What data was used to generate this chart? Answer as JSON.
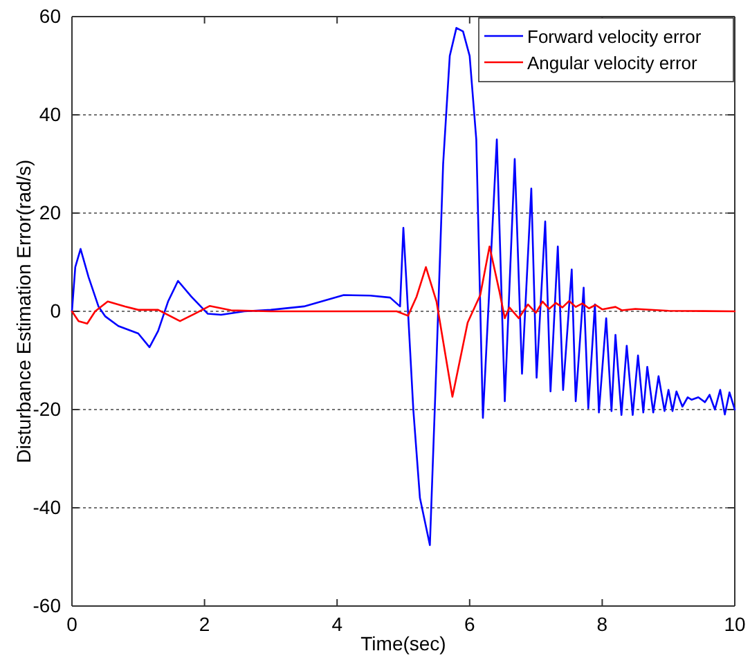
{
  "chart_data": {
    "type": "line",
    "xlabel": "Time(sec)",
    "ylabel": "Disturbance Estimation Error(rad/s)",
    "xlim": [
      0,
      10
    ],
    "ylim": [
      -60,
      60
    ],
    "xticks": [
      0,
      2,
      4,
      6,
      8,
      10
    ],
    "yticks": [
      -60,
      -40,
      -20,
      0,
      20,
      40,
      60
    ],
    "grid": "y",
    "legend": "top right",
    "line_style": "solid",
    "marker": "none",
    "series": [
      {
        "name": "Forward velocity error",
        "color": "#0000ff",
        "x": [
          0,
          0.05,
          0.13,
          0.25,
          0.4,
          0.5,
          0.7,
          1.0,
          1.17,
          1.3,
          1.45,
          1.6,
          1.8,
          2.05,
          2.25,
          2.6,
          3.0,
          3.5,
          4.1,
          4.5,
          4.8,
          4.95,
          5.0,
          5.05,
          5.15,
          5.25,
          5.4,
          5.5,
          5.6,
          5.7,
          5.8,
          5.9,
          6.0,
          6.1,
          6.2,
          6.41,
          6.53,
          6.68,
          6.79,
          6.93,
          7.01,
          7.14,
          7.22,
          7.33,
          7.41,
          7.54,
          7.6,
          7.72,
          7.79,
          7.89,
          7.95,
          8.06,
          8.14,
          8.2,
          8.29,
          8.37,
          8.46,
          8.54,
          8.62,
          8.68,
          8.77,
          8.85,
          8.94,
          9.0,
          9.06,
          9.12,
          9.21,
          9.29,
          9.35,
          9.45,
          9.55,
          9.62,
          9.7,
          9.78,
          9.85,
          9.92,
          10
        ],
        "values": [
          0,
          9,
          12.7,
          7,
          1,
          -1,
          -3,
          -4.5,
          -7.3,
          -4,
          2,
          6.2,
          3,
          -0.5,
          -0.7,
          0,
          0.3,
          1,
          3.3,
          3.2,
          2.8,
          1,
          17,
          5,
          -20,
          -38,
          -47.6,
          -10,
          30,
          52,
          57.7,
          57,
          52,
          35,
          -21.7,
          35,
          -18.3,
          31,
          -12.7,
          25,
          -13.5,
          18.3,
          -16.3,
          13.2,
          -16,
          8.5,
          -18.3,
          4.8,
          -19.7,
          1.4,
          -20.6,
          -1.4,
          -20.3,
          -4.8,
          -21.1,
          -7,
          -21.1,
          -9,
          -20.6,
          -11.3,
          -20.6,
          -13.2,
          -20.3,
          -16,
          -20.3,
          -16.3,
          -19.4,
          -17.5,
          -18,
          -17.5,
          -18.5,
          -17,
          -20,
          -16,
          -21,
          -16.5,
          -20
        ]
      },
      {
        "name": "Angular velocity error",
        "color": "#ff0000",
        "x": [
          0,
          0.1,
          0.23,
          0.35,
          0.54,
          0.8,
          1.0,
          1.3,
          1.63,
          1.85,
          2.08,
          2.4,
          3.0,
          4.0,
          4.9,
          5.07,
          5.2,
          5.34,
          5.5,
          5.74,
          5.97,
          6.16,
          6.3,
          6.45,
          6.53,
          6.6,
          6.74,
          6.88,
          7.0,
          7.1,
          7.2,
          7.3,
          7.4,
          7.5,
          7.6,
          7.7,
          7.8,
          7.9,
          8.0,
          8.2,
          8.3,
          8.5,
          9.0,
          10
        ],
        "values": [
          0,
          -2,
          -2.5,
          0,
          2,
          1,
          0.3,
          0.3,
          -2,
          -0.5,
          1.1,
          0.2,
          0,
          0,
          0,
          -0.9,
          3,
          9,
          2,
          -17.4,
          -2.3,
          3.3,
          13.2,
          4,
          -1.4,
          0.8,
          -1.4,
          1.4,
          -0.3,
          2,
          0.5,
          1.7,
          0.8,
          2.1,
          0.9,
          1.6,
          0.6,
          1.3,
          0.4,
          0.9,
          0.2,
          0.5,
          0.1,
          0
        ]
      }
    ]
  }
}
